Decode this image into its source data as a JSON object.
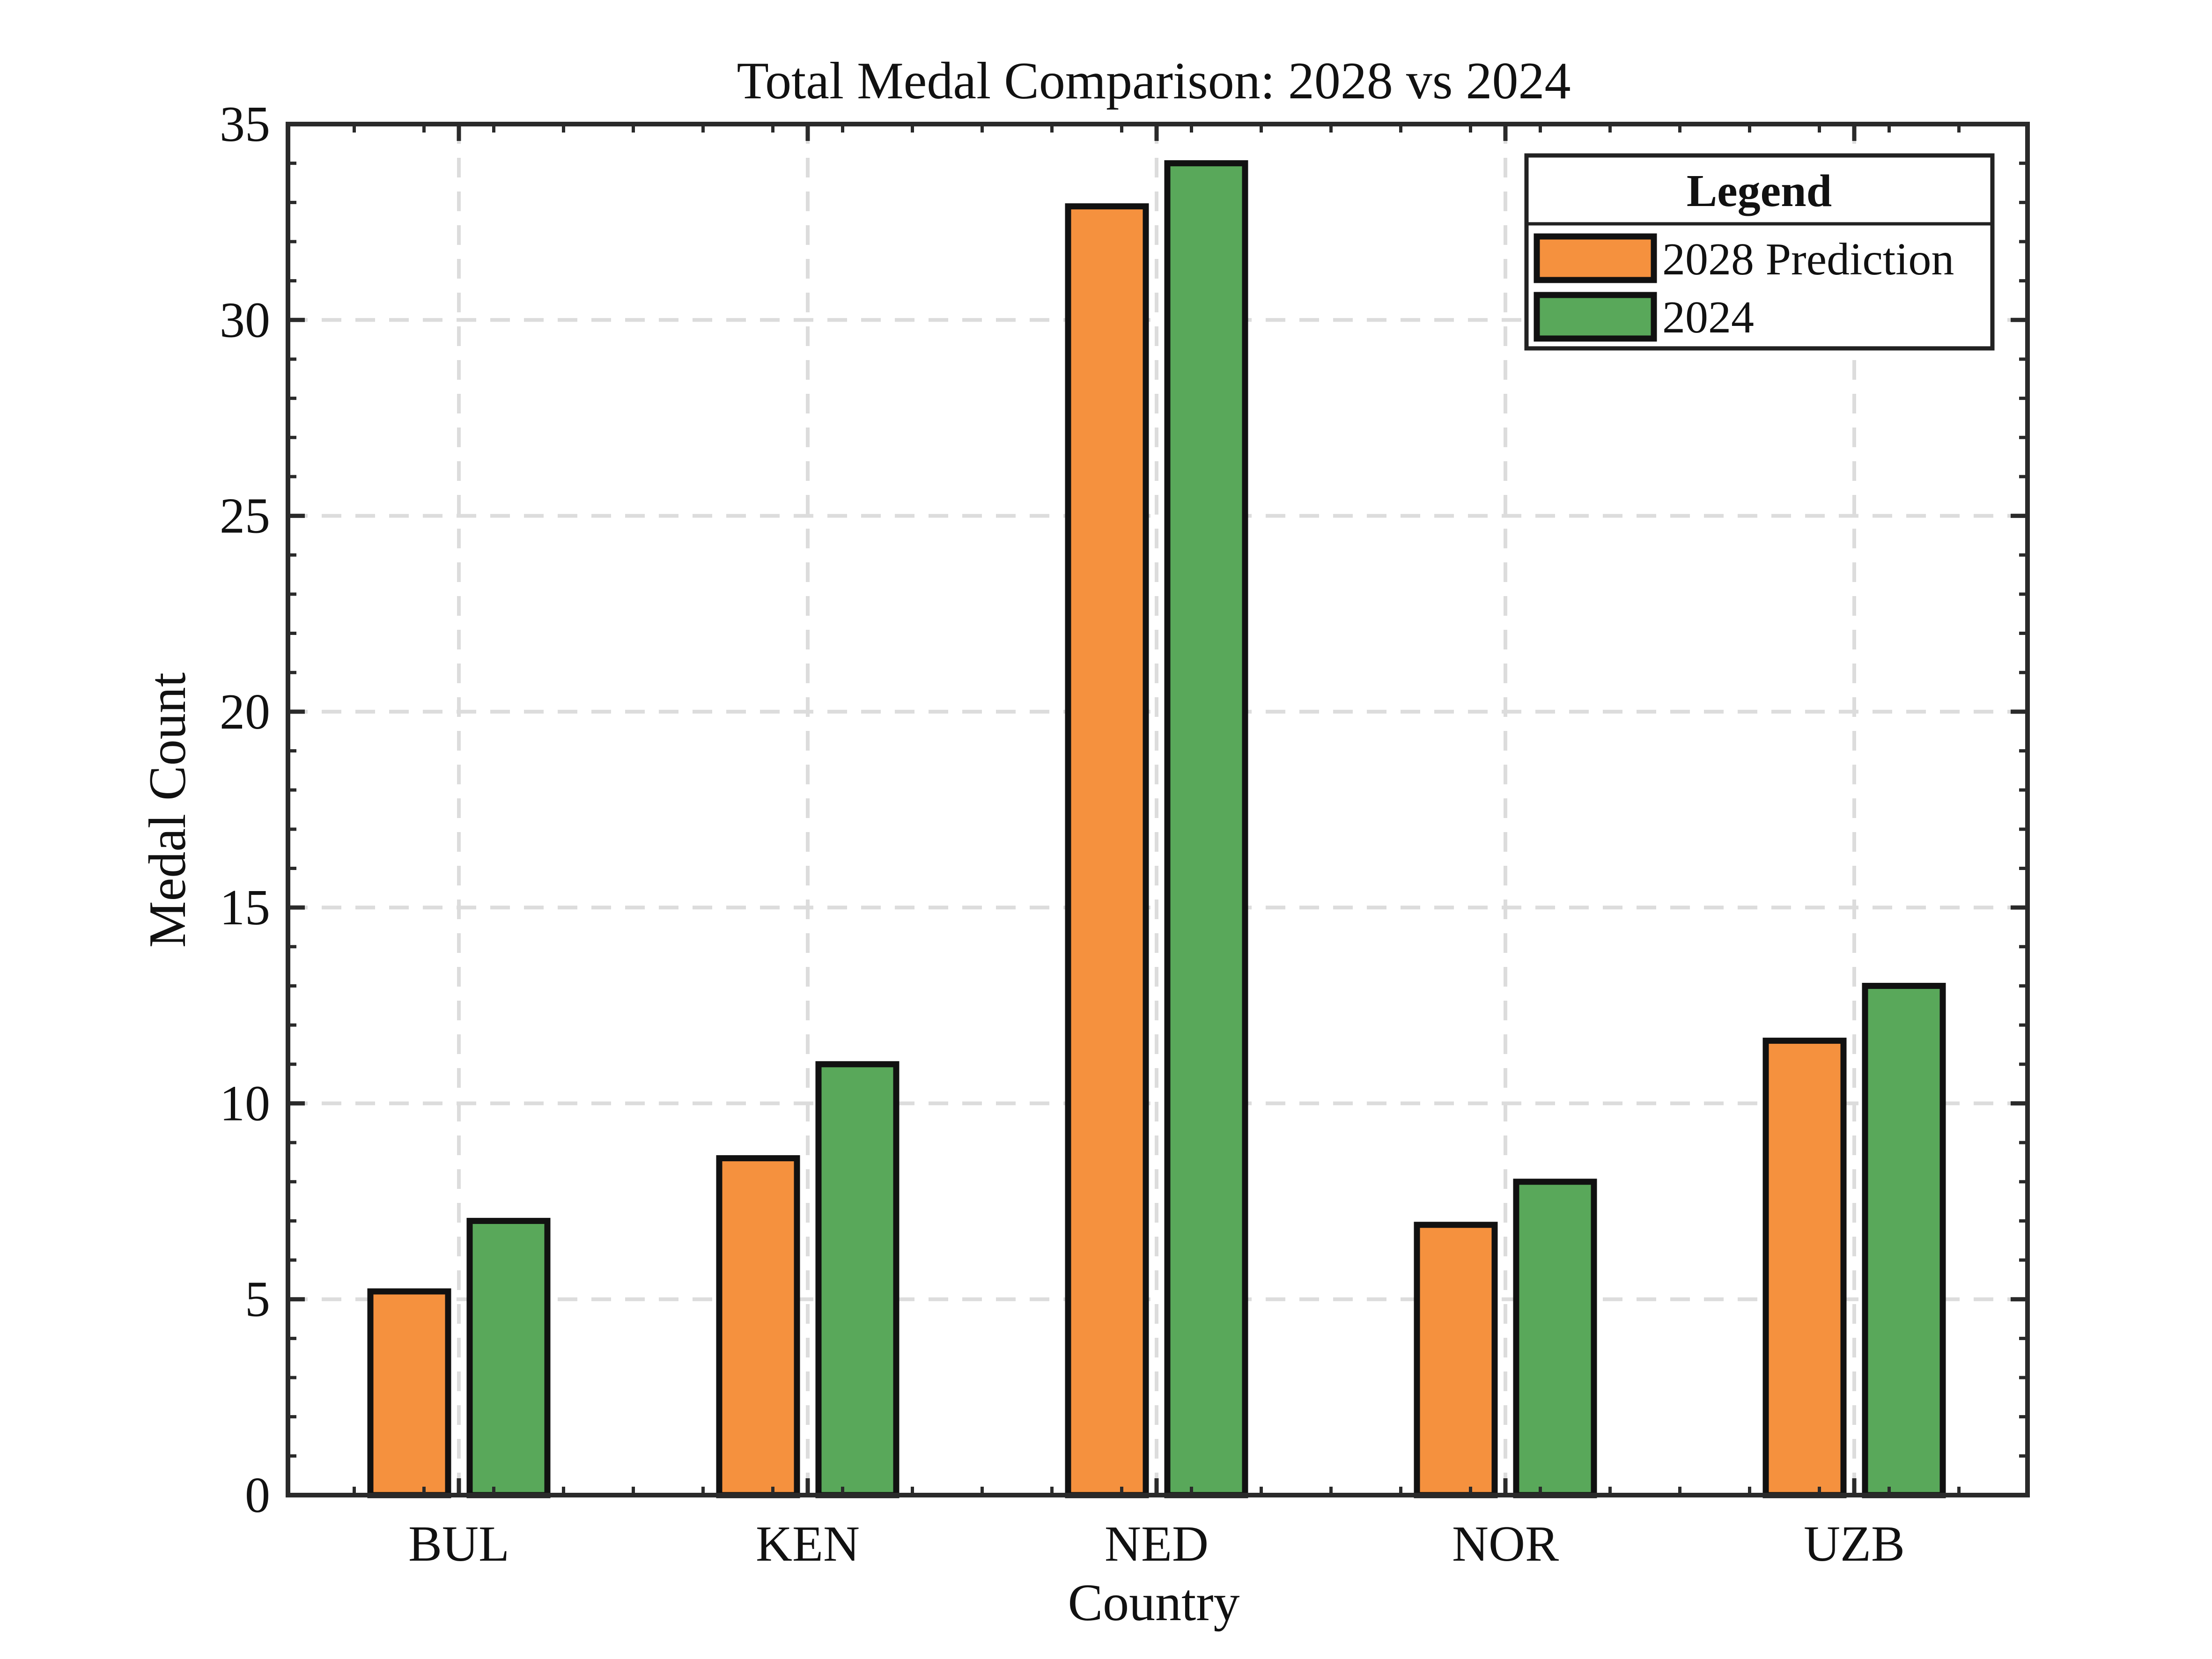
{
  "chart_data": {
    "type": "bar",
    "title": "Total Medal Comparison: 2028 vs 2024",
    "xlabel": "Country",
    "ylabel": "Medal Count",
    "categories": [
      "BUL",
      "KEN",
      "NED",
      "NOR",
      "UZB"
    ],
    "series": [
      {
        "name": "2028 Prediction",
        "values": [
          5.2,
          8.6,
          32.9,
          6.9,
          11.6
        ],
        "color": "#F5913E"
      },
      {
        "name": "2024",
        "values": [
          7,
          11,
          34,
          8,
          13
        ],
        "color": "#59A85A"
      }
    ],
    "ylim": [
      0,
      35
    ],
    "yticks": [
      0,
      5,
      10,
      15,
      20,
      25,
      30,
      35
    ],
    "grid": true,
    "legend": {
      "title": "Legend",
      "position": "top-right"
    }
  }
}
